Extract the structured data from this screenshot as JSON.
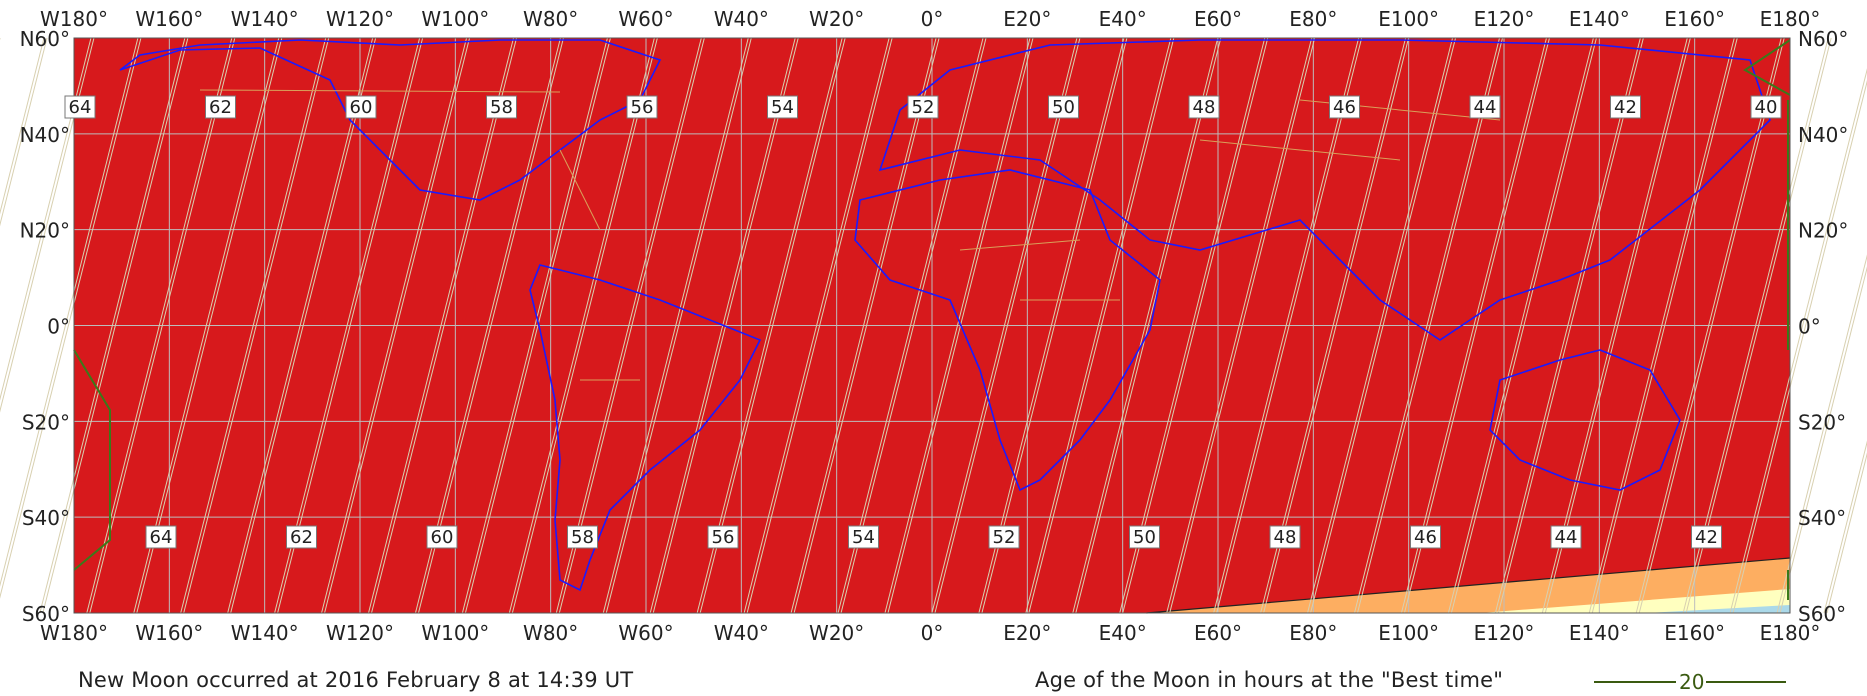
{
  "map": {
    "colors": {
      "background": "#d7191c",
      "grid": "#bdbdbd",
      "coast": "#1a1aff",
      "borders": "#d9a05a",
      "age_contour": "#d8d0b0",
      "visibility_boundary": "#3a7a1a",
      "zone_orange": "#fdae61",
      "zone_yellow": "#ffffbf",
      "zone_blue": "#abd9e9"
    },
    "lon_labels": [
      "W180°",
      "W160°",
      "W140°",
      "W120°",
      "W100°",
      "W80°",
      "W60°",
      "W40°",
      "W20°",
      "0°",
      "E20°",
      "E40°",
      "E60°",
      "E80°",
      "E100°",
      "E120°",
      "E140°",
      "E160°",
      "E180°"
    ],
    "lat_labels": [
      "N60°",
      "N40°",
      "N20°",
      "0°",
      "S20°",
      "S40°",
      "S60°"
    ],
    "age_labels_north": [
      "64",
      "62",
      "60",
      "58",
      "56",
      "54",
      "52",
      "50",
      "48",
      "46",
      "44",
      "42",
      "40"
    ],
    "age_labels_south": [
      "64",
      "62",
      "60",
      "58",
      "56",
      "54",
      "52",
      "50",
      "48",
      "46",
      "44",
      "42"
    ]
  },
  "captions": {
    "new_moon": "New Moon occurred at 2016 February 8 at 14:39 UT",
    "age_legend": "Age of the Moon in hours at the \"Best time\"",
    "legend_value": "20"
  }
}
